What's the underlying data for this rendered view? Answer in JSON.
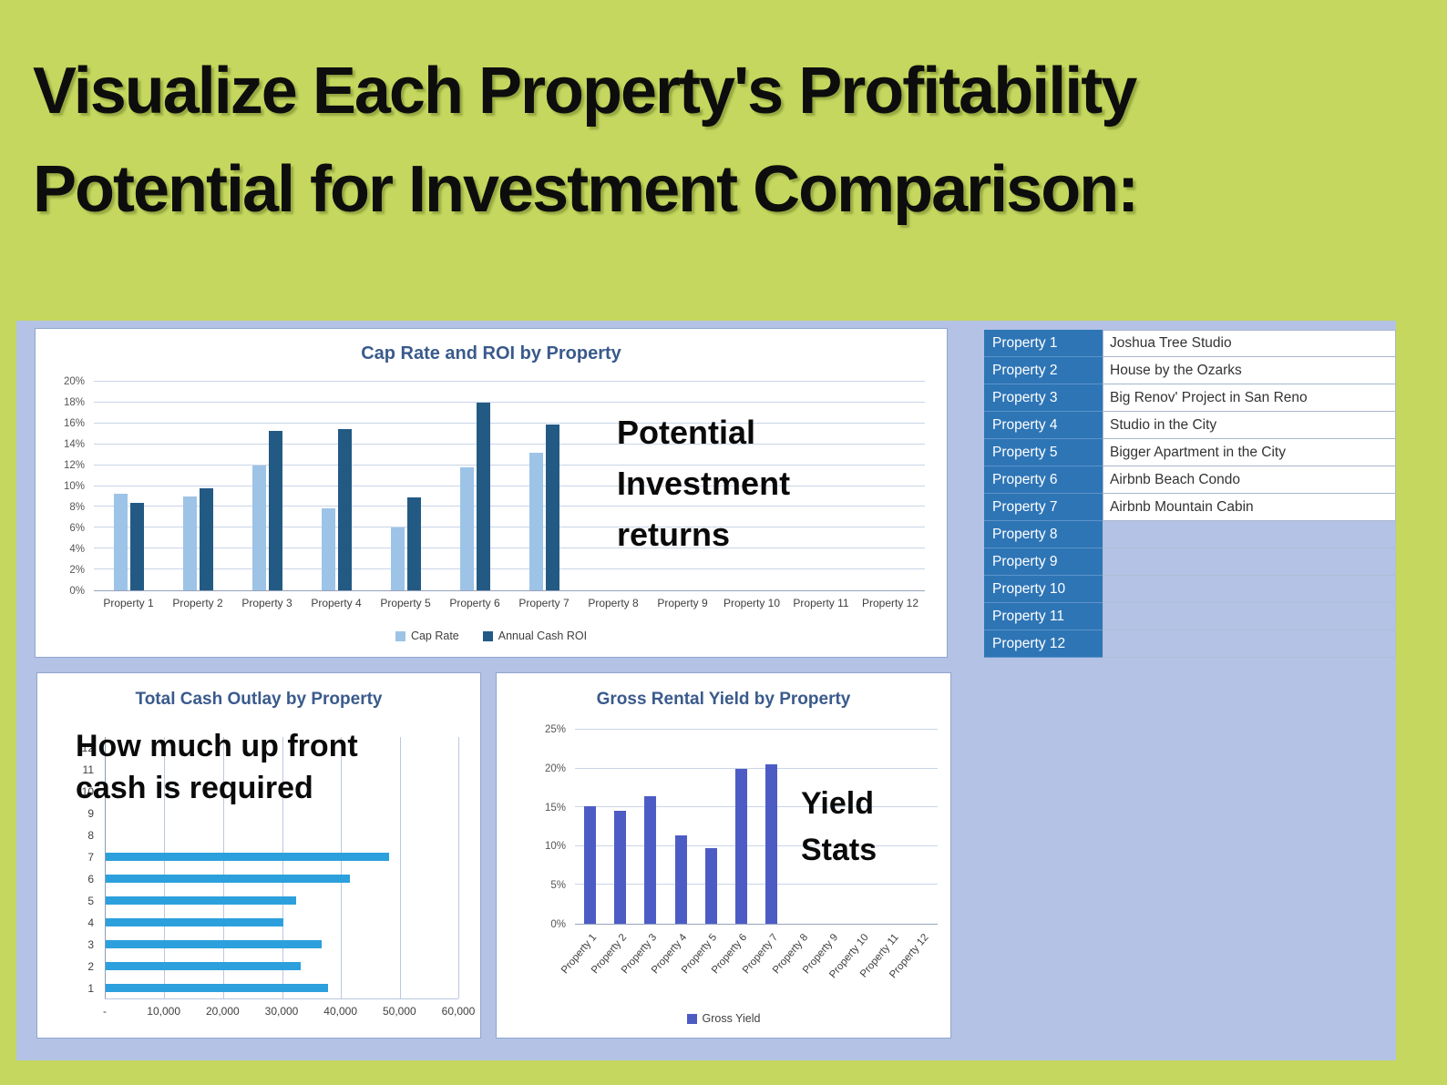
{
  "page": {
    "title_line1": "Visualize Each Property's Profitability",
    "title_line2": "Potential for Investment Comparison:"
  },
  "colors": {
    "background": "#c5d75e",
    "panel": "#b4c2e6",
    "chart_title": "#3a5a8c",
    "cap_rate": "#9dc3e6",
    "roi": "#235a84",
    "outlay": "#2ca0dc",
    "yield": "#4d5cc5",
    "table_label_bg": "#2e75b6",
    "table_label_text": "#ffffff"
  },
  "property_table": {
    "rows": [
      {
        "label": "Property 1",
        "name": "Joshua Tree Studio"
      },
      {
        "label": "Property 2",
        "name": "House by the Ozarks"
      },
      {
        "label": "Property 3",
        "name": "Big Renov' Project in San Reno"
      },
      {
        "label": "Property 4",
        "name": "Studio in the City"
      },
      {
        "label": "Property 5",
        "name": "Bigger Apartment in the City"
      },
      {
        "label": "Property 6",
        "name": "Airbnb Beach Condo"
      },
      {
        "label": "Property 7",
        "name": "Airbnb Mountain Cabin"
      },
      {
        "label": "Property 8",
        "name": ""
      },
      {
        "label": "Property 9",
        "name": ""
      },
      {
        "label": "Property 10",
        "name": ""
      },
      {
        "label": "Property 11",
        "name": ""
      },
      {
        "label": "Property 12",
        "name": ""
      }
    ]
  },
  "chart_data": [
    {
      "type": "bar",
      "title": "Cap Rate and ROI by Property",
      "categories": [
        "Property 1",
        "Property 2",
        "Property 3",
        "Property 4",
        "Property 5",
        "Property 6",
        "Property 7",
        "Property 8",
        "Property 9",
        "Property 10",
        "Property 11",
        "Property 12"
      ],
      "series": [
        {
          "name": "Cap Rate",
          "color_key": "cap_rate",
          "values": [
            9.3,
            9.0,
            12.0,
            7.9,
            6.0,
            11.8,
            13.2,
            null,
            null,
            null,
            null,
            null
          ]
        },
        {
          "name": "Annual Cash ROI",
          "color_key": "roi",
          "values": [
            8.4,
            9.8,
            15.3,
            15.5,
            8.9,
            18.0,
            15.9,
            null,
            null,
            null,
            null,
            null
          ]
        }
      ],
      "ylim": [
        0,
        20
      ],
      "ytick_step": 2,
      "ytick_suffix": "%",
      "grid": true,
      "legend_position": "bottom",
      "annotation": "Potential Investment returns"
    },
    {
      "type": "bar-horizontal",
      "title": "Total Cash Outlay by Property",
      "categories": [
        "1",
        "2",
        "3",
        "4",
        "5",
        "6",
        "7",
        "8",
        "9",
        "10",
        "11",
        "12"
      ],
      "series": [
        {
          "name": "Total Cash Outlay",
          "color_key": "outlay",
          "values": [
            37900,
            33200,
            36700,
            30200,
            32400,
            41600,
            48200,
            null,
            null,
            null,
            null,
            null
          ]
        }
      ],
      "xlim": [
        0,
        60000
      ],
      "xtick_labels": [
        "-",
        "10,000",
        "20,000",
        "30,000",
        "40,000",
        "50,000",
        "60,000"
      ],
      "grid": true,
      "legend_position": "none",
      "annotation": "How much up front cash is required"
    },
    {
      "type": "bar",
      "title": "Gross Rental Yield by Property",
      "categories": [
        "Property 1",
        "Property 2",
        "Property 3",
        "Property 4",
        "Property 5",
        "Property 6",
        "Property 7",
        "Property 8",
        "Property 9",
        "Property 10",
        "Property 11",
        "Property 12"
      ],
      "series": [
        {
          "name": "Gross Yield",
          "color_key": "yield",
          "values": [
            15.2,
            14.6,
            16.4,
            11.4,
            9.7,
            19.9,
            20.6,
            null,
            null,
            null,
            null,
            null
          ]
        }
      ],
      "ylim": [
        0,
        25
      ],
      "ytick_step": 5,
      "ytick_suffix": "%",
      "grid": true,
      "legend_position": "bottom",
      "annotation": "Yield Stats"
    }
  ]
}
